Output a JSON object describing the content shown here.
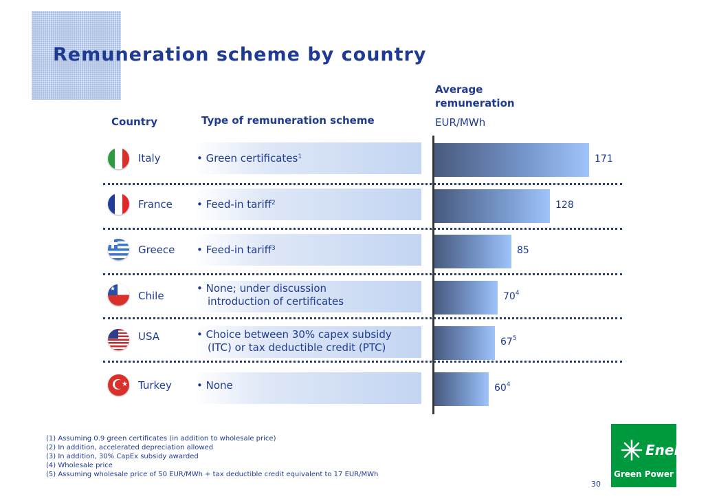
{
  "title": "Remuneration scheme by country",
  "headers": {
    "country": "Country",
    "scheme": "Type of remuneration scheme",
    "avg_line1": "Average",
    "avg_line2": "remuneration",
    "unit": "EUR/MWh"
  },
  "rows": [
    {
      "country": "Italy",
      "scheme_line1": "• Green certificates",
      "scheme_sup": "1",
      "scheme_line2": "",
      "value_label": "171",
      "value_sup": ""
    },
    {
      "country": "France",
      "scheme_line1": "• Feed-in tariff",
      "scheme_sup": "2",
      "scheme_line2": "",
      "value_label": "128",
      "value_sup": ""
    },
    {
      "country": "Greece",
      "scheme_line1": "• Feed-in tariff",
      "scheme_sup": "3",
      "scheme_line2": "",
      "value_label": "85",
      "value_sup": ""
    },
    {
      "country": "Chile",
      "scheme_line1": "• None; under discussion",
      "scheme_sup": "",
      "scheme_line2": "introduction of certificates",
      "value_label": "70",
      "value_sup": "4"
    },
    {
      "country": "USA",
      "scheme_line1": "• Choice between 30% capex subsidy",
      "scheme_sup": "",
      "scheme_line2": "(ITC) or tax deductible credit (PTC)",
      "value_label": "67",
      "value_sup": "5"
    },
    {
      "country": "Turkey",
      "scheme_line1": "• None",
      "scheme_sup": "",
      "scheme_line2": "",
      "value_label": "60",
      "value_sup": "4"
    }
  ],
  "chart_data": {
    "type": "bar",
    "orientation": "horizontal",
    "categories": [
      "Italy",
      "France",
      "Greece",
      "Chile",
      "USA",
      "Turkey"
    ],
    "values": [
      171,
      128,
      85,
      70,
      67,
      60
    ],
    "ylabel": "EUR/MWh",
    "grid": false
  },
  "footnotes": [
    "(1) Assuming 0.9 green certificates (in addition to wholesale price)",
    "(2) In addition, accelerated depreciation allowed",
    "(3) In addition, 30% CapEx subsidy awarded",
    "(4) Wholesale price",
    "(5) Assuming wholesale price of 50 EUR/MWh + tax deductible credit equivalent to 17 EUR/MWh"
  ],
  "logo": {
    "brand": "Enel",
    "subtitle": "Green Power"
  },
  "page_number": "30",
  "colors": {
    "title": "#1f3a93",
    "logo_green": "#009a3e",
    "bar_dark": "#485a7e",
    "bar_light": "#9fc4fb"
  },
  "flags": [
    "italy-flag-icon",
    "france-flag-icon",
    "greece-flag-icon",
    "chile-flag-icon",
    "usa-flag-icon",
    "turkey-flag-icon"
  ]
}
